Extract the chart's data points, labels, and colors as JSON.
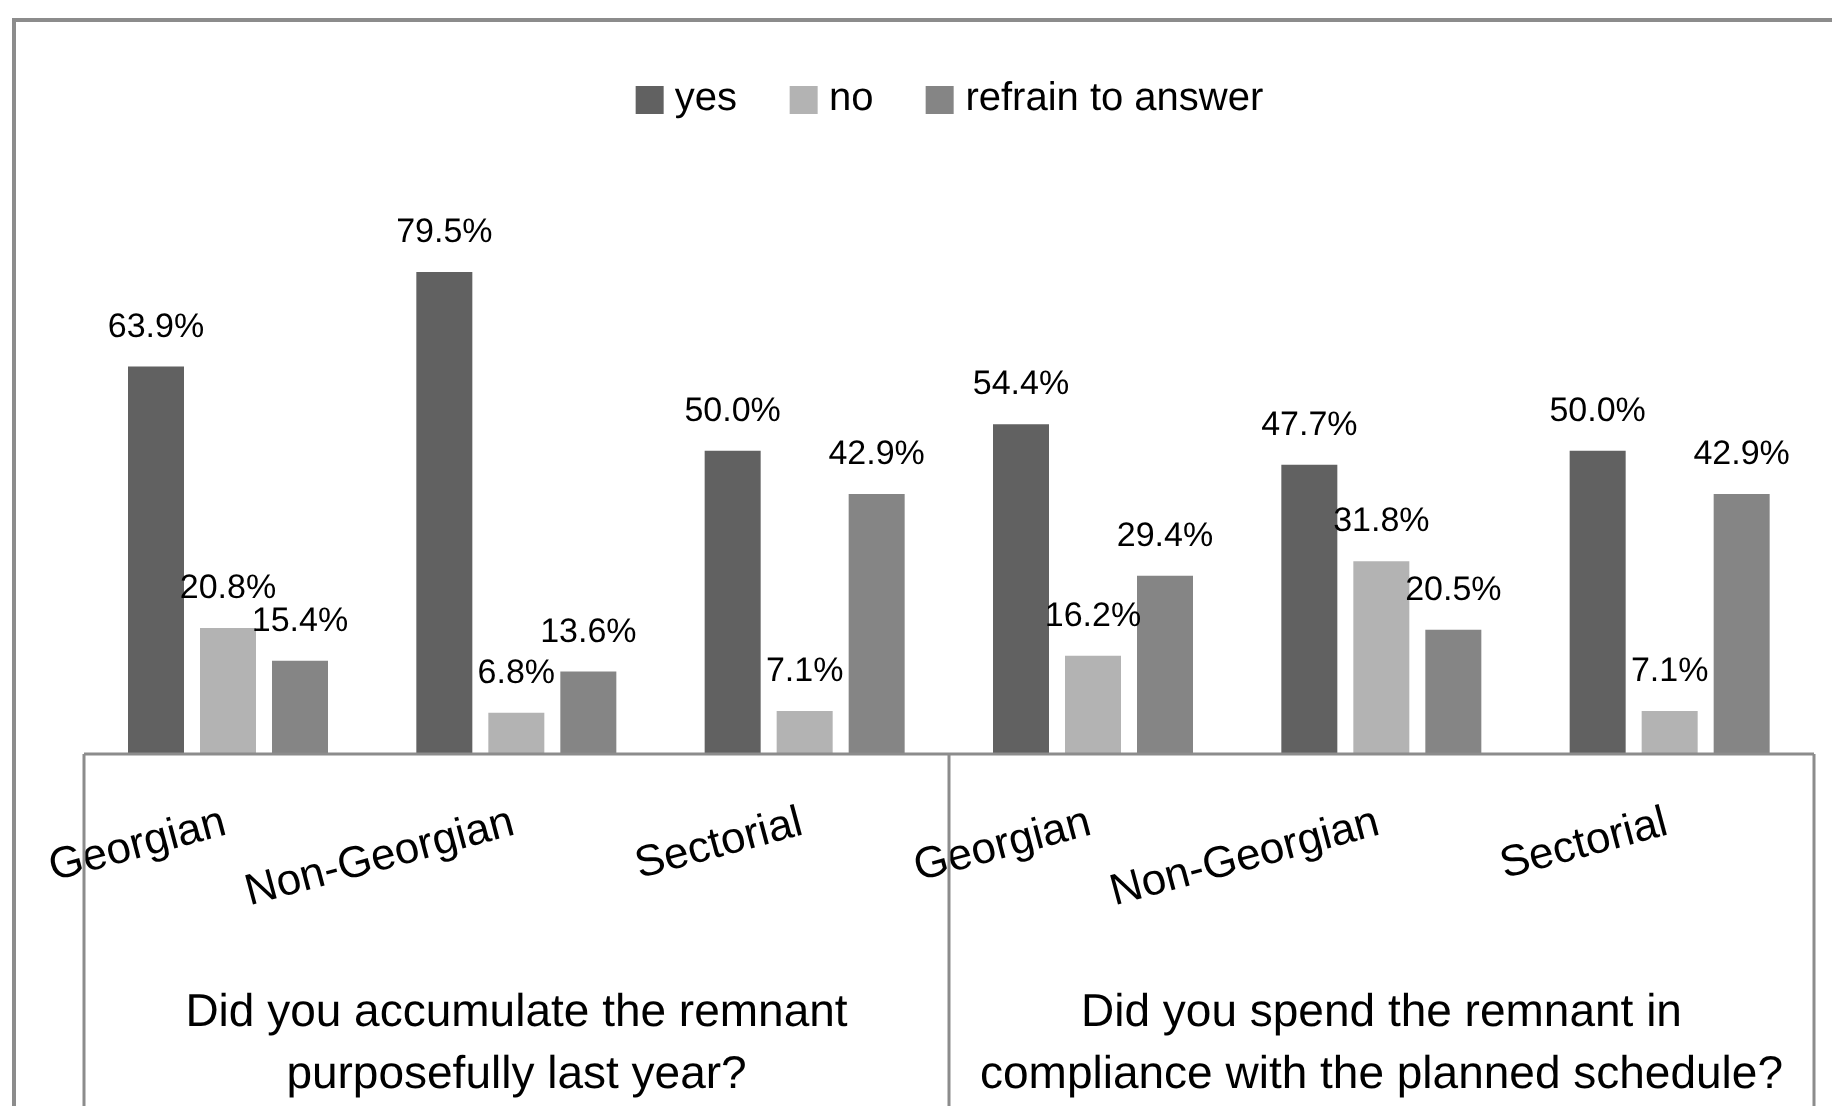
{
  "chart_data": {
    "type": "bar",
    "categories": [
      "Georgian",
      "Non-Georgian",
      "Sectorial",
      "Georgian",
      "Non-Georgian",
      "Sectorial"
    ],
    "series": [
      {
        "name": "yes",
        "color": "#616161",
        "values": [
          63.9,
          79.5,
          50.0,
          54.4,
          47.7,
          50.0
        ],
        "value_labels": [
          "63.9%",
          "79.5%",
          "50.0%",
          "54.4%",
          "47.7%",
          "50.0%"
        ]
      },
      {
        "name": "no",
        "color": "#b3b3b3",
        "values": [
          20.8,
          6.8,
          7.1,
          16.2,
          31.8,
          7.1
        ],
        "value_labels": [
          "20.8%",
          "6.8%",
          "7.1%",
          "16.2%",
          "31.8%",
          "7.1%"
        ]
      },
      {
        "name": "refrain to answer",
        "color": "#858585",
        "values": [
          15.4,
          13.6,
          42.9,
          29.4,
          20.5,
          42.9
        ],
        "value_labels": [
          "15.4%",
          "13.6%",
          "42.9%",
          "29.4%",
          "20.5%",
          "42.9%"
        ]
      }
    ],
    "annotations": [
      "Did you accumulate the remnant purposefully last year?",
      "Did you spend the remnant in compliance with the planned schedule?"
    ],
    "legend": "top"
  }
}
